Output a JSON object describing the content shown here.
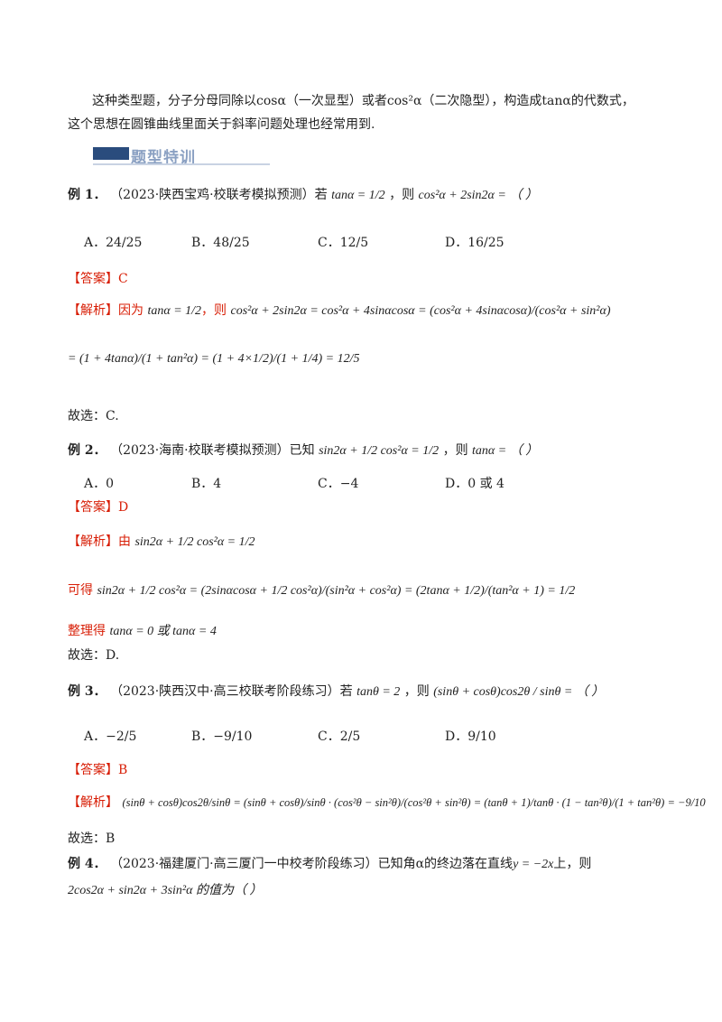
{
  "intro": {
    "p1": "这种类型题，分子分母同除以cosα（一次显型）或者cos²α（二次隐型），构造成tanα的代数式，",
    "p2": "这个思想在圆锥曲线里面关于斜率问题处理也经常用到."
  },
  "banner": "题型特训",
  "ex1": {
    "label": "例 1．",
    "source": "（2023·陕西宝鸡·校联考模拟预测）若",
    "cond": "tanα = 1/2",
    "mid": "，则",
    "ask": "cos²α + 2sin2α = （   ）",
    "options": [
      "A．24/25",
      "B．48/25",
      "C．12/5",
      "D．16/25"
    ],
    "answer_label": "【答案】",
    "answer": "C",
    "analysis_label": "【解析】",
    "analysis_intro": "因为",
    "analysis_then": "，则",
    "line1": "cos²α + 2sin2α = cos²α + 4sinαcosα = (cos²α + 4sinαcosα)/(cos²α + sin²α)",
    "line2": "= (1 + 4tanα)/(1 + tan²α) = (1 + 4×1/2)/(1 + 1/4) = 12/5",
    "choose": "故选：C."
  },
  "ex2": {
    "label": "例 2．",
    "source": "（2023·海南·校联考模拟预测）已知",
    "cond": "sin2α + 1/2 cos²α = 1/2",
    "mid": "，则",
    "ask": "tanα = （   ）",
    "options": [
      "A．0",
      "B．4",
      "C．−4",
      "D．0 或 4"
    ],
    "answer_label": "【答案】",
    "answer": "D",
    "analysis_label": "【解析】",
    "analysis_intro": "由",
    "get_label": "可得",
    "line1": "sin2α + 1/2 cos²α = (2sinαcosα + 1/2 cos²α)/(sin²α + cos²α) = (2tanα + 1/2)/(tan²α + 1) = 1/2",
    "sort_label": "整理得",
    "sort_text": "tanα = 0 或 tanα = 4",
    "choose": "故选：D."
  },
  "ex3": {
    "label": "例 3．",
    "source": "（2023·陕西汉中·高三校联考阶段练习）若",
    "cond": "tanθ = 2",
    "mid": "，则",
    "ask": "(sinθ + cosθ)cos2θ / sinθ = （   ）",
    "options": [
      "A．−2/5",
      "B．−9/10",
      "C．2/5",
      "D．9/10"
    ],
    "answer_label": "【答案】",
    "answer": "B",
    "analysis_label": "【解析】",
    "line1": "(sinθ + cosθ)cos2θ/sinθ = (sinθ + cosθ)/sinθ · (cos²θ − sin²θ)/(cos²θ + sin²θ) = (tanθ + 1)/tanθ · (1 − tan²θ)/(1 + tan²θ) = −9/10",
    "choose": "故选：B"
  },
  "ex4": {
    "label": "例 4．",
    "source": "（2023·福建厦门·高三厦门一中校考阶段练习）已知角α的终边落在直线",
    "line": "y = −2x",
    "tail": "上，则",
    "ask": "2cos2α + sin2α + 3sin²α 的值为（   ）"
  }
}
